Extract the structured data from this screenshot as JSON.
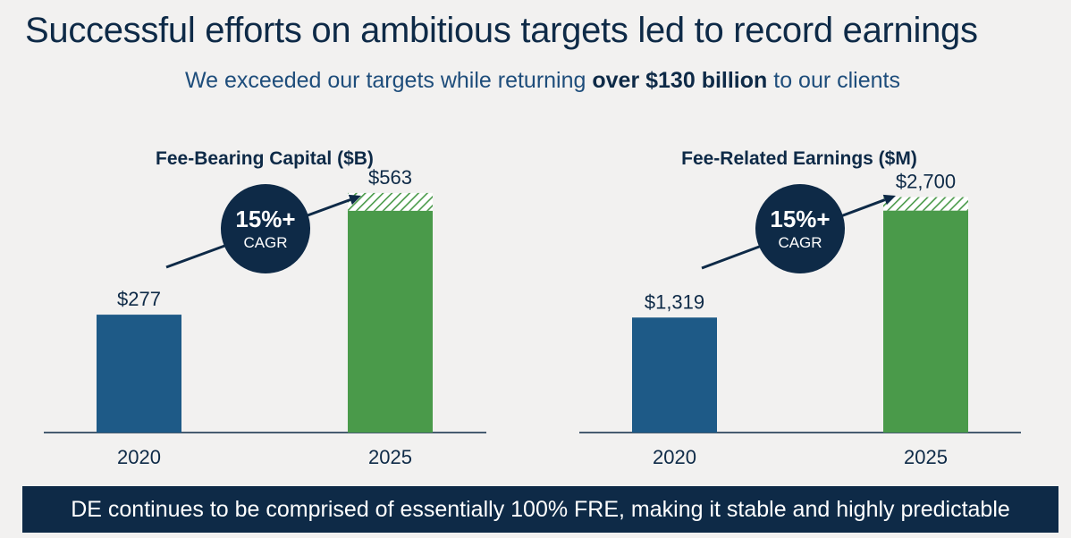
{
  "header": {
    "title": "Successful efforts on ambitious targets led to record earnings",
    "subtitle_pre": "We exceeded our targets while returning ",
    "subtitle_bold": "over $130 billion",
    "subtitle_post": " to our clients"
  },
  "chart_data": [
    {
      "type": "bar",
      "title": "Fee-Bearing Capital ($B)",
      "categories": [
        "2020",
        "2025"
      ],
      "values": [
        277,
        563
      ],
      "value_labels": [
        "$277",
        "$563"
      ],
      "colors": [
        "#1e5a87",
        "#4a9a4a"
      ],
      "target_portion": 42,
      "cagr_value": "15%+",
      "cagr_label": "CAGR",
      "ylim": [
        0,
        840
      ]
    },
    {
      "type": "bar",
      "title": "Fee-Related Earnings ($M)",
      "categories": [
        "2020",
        "2025"
      ],
      "values": [
        1319,
        2700
      ],
      "value_labels": [
        "$1,319",
        "$2,700"
      ],
      "colors": [
        "#1e5a87",
        "#4a9a4a"
      ],
      "target_portion": 155,
      "cagr_value": "15%+",
      "cagr_label": "CAGR",
      "ylim": [
        0,
        4100
      ]
    }
  ],
  "footer": {
    "text": "DE continues to be comprised of essentially 100% FRE, making it stable and highly predictable"
  }
}
